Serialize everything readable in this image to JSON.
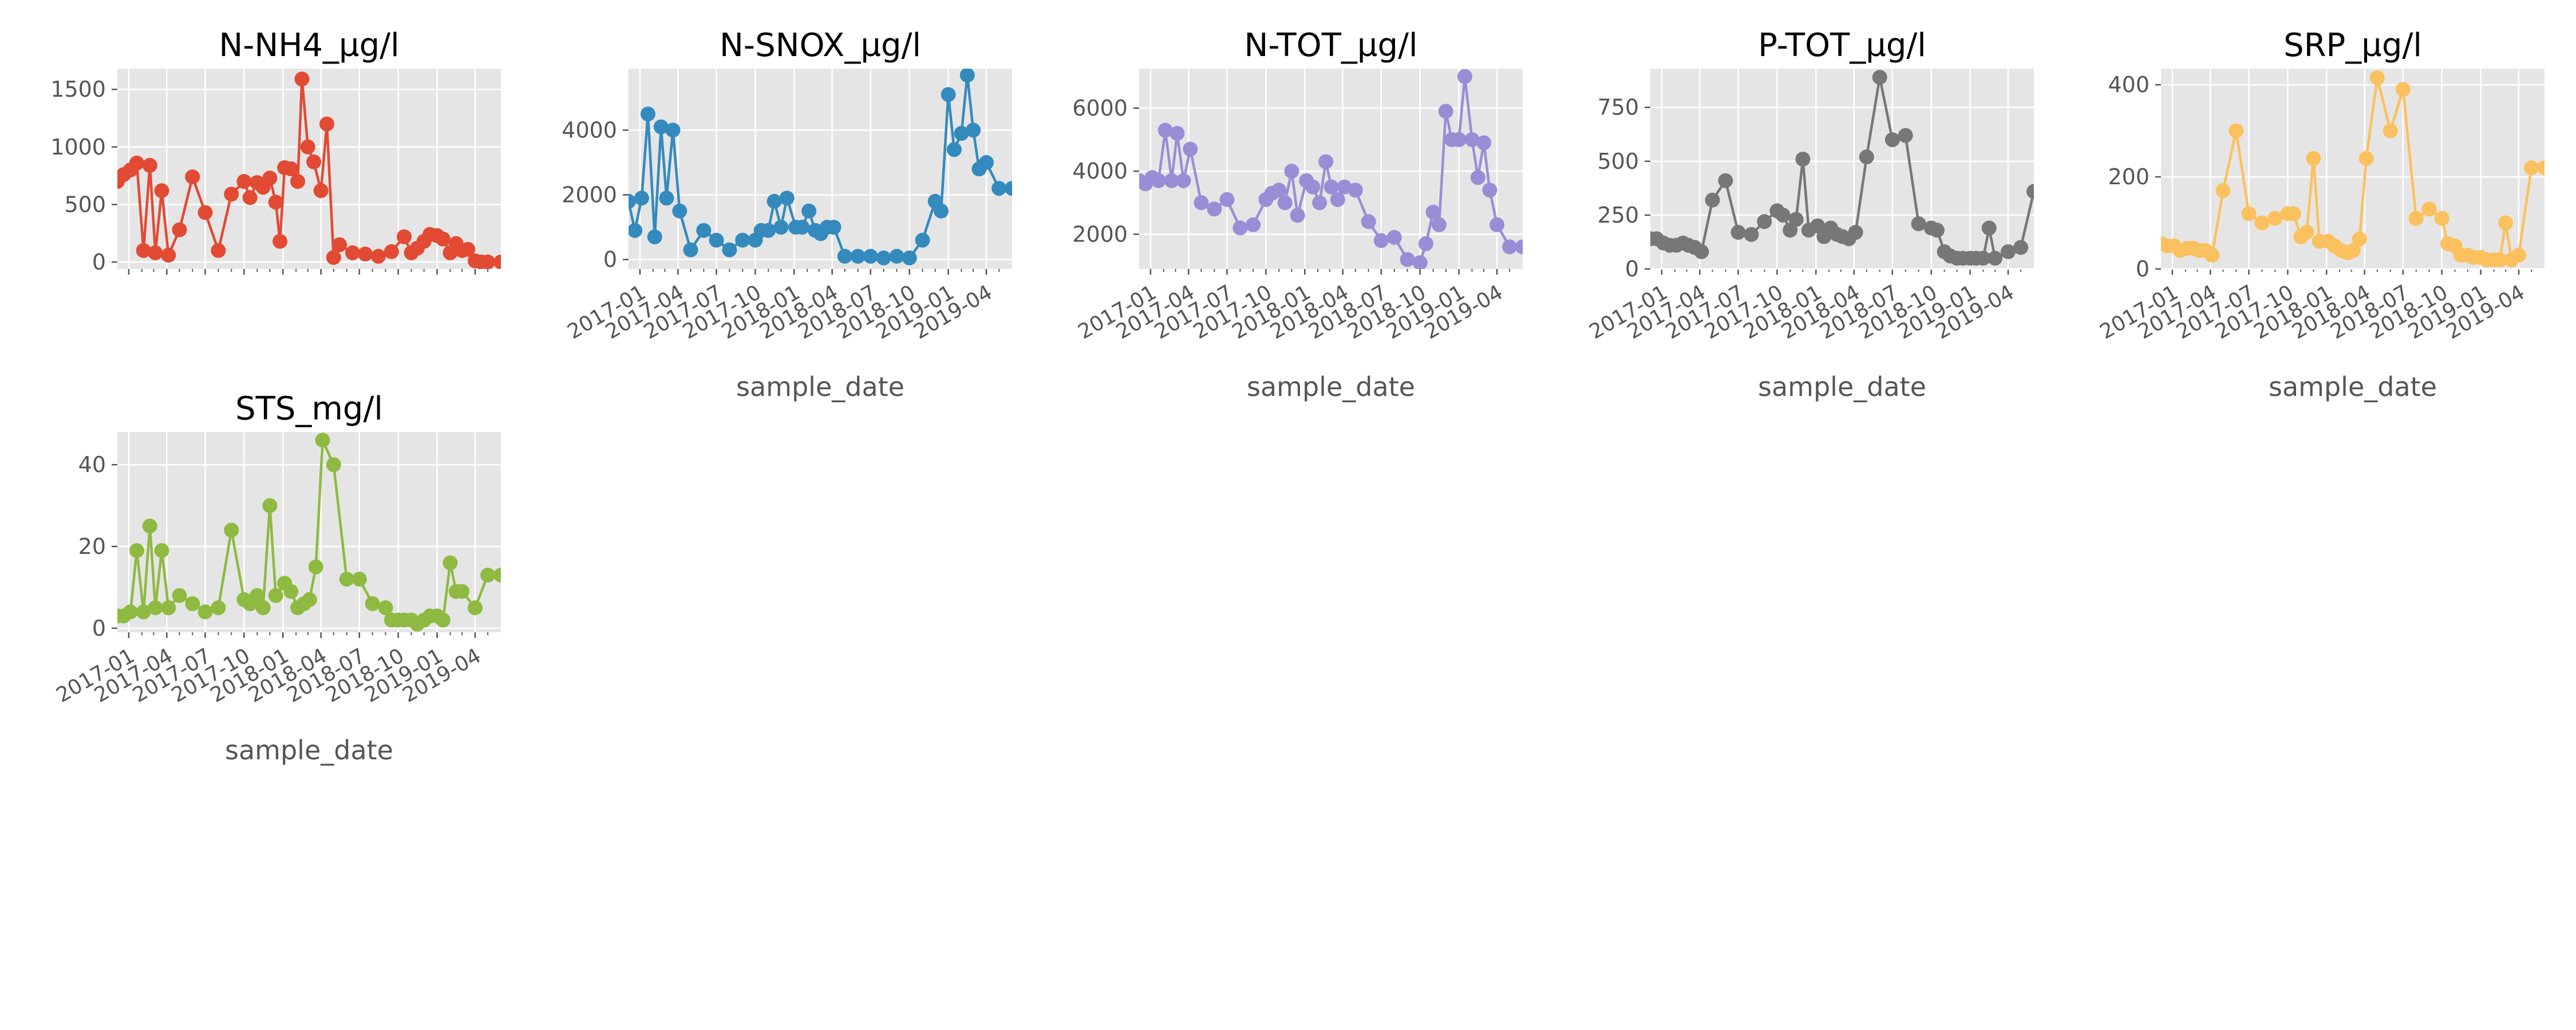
{
  "figure": {
    "background": "#ffffff",
    "panel_background": "#e5e5e5",
    "grid_color": "#ffffff",
    "tick_color": "#555555",
    "title_color": "#000000"
  },
  "chart_data": [
    {
      "type": "line",
      "title": "N-NH4_µg/l",
      "xlabel": "",
      "ylabel": "",
      "color": "#E24A33",
      "x_tick_labels_shown": false,
      "ylim": [
        -60,
        1680
      ],
      "yticks": [
        0,
        500,
        1000,
        1500
      ],
      "ytick_labels": [
        "0",
        "500",
        "1000",
        "1500"
      ],
      "x": [
        "2016-12-05",
        "2016-12-20",
        "2017-01-05",
        "2017-01-20",
        "2017-02-05",
        "2017-02-20",
        "2017-03-05",
        "2017-03-20",
        "2017-04-05",
        "2017-05-01",
        "2017-06-01",
        "2017-07-01",
        "2017-08-01",
        "2017-09-01",
        "2017-10-01",
        "2017-10-15",
        "2017-11-01",
        "2017-11-15",
        "2017-12-01",
        "2017-12-15",
        "2017-12-25",
        "2018-01-05",
        "2018-01-20",
        "2018-02-05",
        "2018-02-15",
        "2018-03-01",
        "2018-03-15",
        "2018-04-01",
        "2018-04-15",
        "2018-05-01",
        "2018-05-15",
        "2018-06-15",
        "2018-07-15",
        "2018-08-15",
        "2018-09-15",
        "2018-10-15",
        "2018-11-01",
        "2018-11-15",
        "2018-12-01",
        "2018-12-15",
        "2019-01-01",
        "2019-01-15",
        "2019-02-01",
        "2019-02-15",
        "2019-03-01",
        "2019-03-15",
        "2019-04-01",
        "2019-04-15",
        "2019-05-01",
        "2019-06-01",
        "2019-07-01"
      ],
      "y": [
        700,
        760,
        800,
        860,
        100,
        840,
        80,
        620,
        60,
        280,
        740,
        430,
        100,
        590,
        700,
        560,
        690,
        650,
        730,
        520,
        180,
        820,
        810,
        700,
        1590,
        1000,
        870,
        620,
        1200,
        40,
        150,
        80,
        70,
        50,
        90,
        220,
        80,
        120,
        180,
        240,
        230,
        200,
        80,
        160,
        100,
        110,
        10,
        0,
        0,
        0,
        0
      ]
    },
    {
      "type": "line",
      "title": "N-SNOX_µg/l",
      "xlabel": "sample_date",
      "ylabel": "",
      "color": "#348ABD",
      "x_tick_labels_shown": true,
      "x_tick_labels": [
        "2017-01",
        "2017-04",
        "2017-07",
        "2017-10",
        "2018-01",
        "2018-04",
        "2018-07",
        "2018-10",
        "2019-01",
        "2019-04"
      ],
      "ylim": [
        -290,
        5900
      ],
      "yticks": [
        0,
        2000,
        4000
      ],
      "ytick_labels": [
        "0",
        "2000",
        "4000"
      ],
      "x": [
        "2016-12-05",
        "2016-12-20",
        "2017-01-05",
        "2017-01-20",
        "2017-02-05",
        "2017-02-20",
        "2017-03-05",
        "2017-03-20",
        "2017-04-05",
        "2017-05-01",
        "2017-06-01",
        "2017-07-01",
        "2017-08-01",
        "2017-09-01",
        "2017-10-01",
        "2017-10-15",
        "2017-11-01",
        "2017-11-15",
        "2017-12-01",
        "2017-12-15",
        "2018-01-05",
        "2018-01-20",
        "2018-02-05",
        "2018-02-20",
        "2018-03-05",
        "2018-03-20",
        "2018-04-05",
        "2018-05-01",
        "2018-06-01",
        "2018-07-01",
        "2018-08-01",
        "2018-09-01",
        "2018-10-01",
        "2018-11-01",
        "2018-12-01",
        "2018-12-15",
        "2019-01-01",
        "2019-01-15",
        "2019-02-01",
        "2019-02-15",
        "2019-03-01",
        "2019-03-15",
        "2019-04-01",
        "2019-05-01",
        "2019-06-01"
      ],
      "y": [
        1800,
        900,
        1900,
        4500,
        700,
        4100,
        1900,
        4000,
        1500,
        300,
        900,
        600,
        300,
        600,
        600,
        900,
        900,
        1800,
        1000,
        1900,
        1000,
        1000,
        1500,
        900,
        800,
        1000,
        1000,
        100,
        100,
        100,
        50,
        100,
        50,
        600,
        1800,
        1500,
        5100,
        3400,
        3900,
        5700,
        4000,
        2800,
        3000,
        2200,
        2200
      ]
    },
    {
      "type": "line",
      "title": "N-TOT_µg/l",
      "xlabel": "sample_date",
      "ylabel": "",
      "color": "#988ED5",
      "x_tick_labels_shown": true,
      "x_tick_labels": [
        "2017-01",
        "2017-04",
        "2017-07",
        "2017-10",
        "2018-01",
        "2018-04",
        "2018-07",
        "2018-10",
        "2019-01",
        "2019-04"
      ],
      "ylim": [
        900,
        7250
      ],
      "yticks": [
        2000,
        4000,
        6000
      ],
      "ytick_labels": [
        "2000",
        "4000",
        "6000"
      ],
      "x": [
        "2016-12-05",
        "2016-12-20",
        "2017-01-05",
        "2017-01-20",
        "2017-02-05",
        "2017-02-20",
        "2017-03-05",
        "2017-03-20",
        "2017-04-05",
        "2017-05-01",
        "2017-06-01",
        "2017-07-01",
        "2017-08-01",
        "2017-09-01",
        "2017-10-01",
        "2017-10-15",
        "2017-11-01",
        "2017-11-15",
        "2017-12-01",
        "2017-12-15",
        "2018-01-05",
        "2018-01-20",
        "2018-02-05",
        "2018-02-20",
        "2018-03-05",
        "2018-03-20",
        "2018-04-05",
        "2018-05-01",
        "2018-06-01",
        "2018-07-01",
        "2018-08-01",
        "2018-09-01",
        "2018-10-01",
        "2018-10-15",
        "2018-11-01",
        "2018-11-15",
        "2018-12-01",
        "2018-12-15",
        "2019-01-01",
        "2019-01-15",
        "2019-02-01",
        "2019-02-15",
        "2019-03-01",
        "2019-03-15",
        "2019-04-01",
        "2019-05-01",
        "2019-06-01"
      ],
      "y": [
        3700,
        3600,
        3800,
        3700,
        5300,
        3700,
        5200,
        3700,
        4700,
        3000,
        2800,
        3100,
        2200,
        2300,
        3100,
        3300,
        3400,
        3000,
        4000,
        2600,
        3700,
        3500,
        3000,
        4300,
        3500,
        3100,
        3500,
        3400,
        2400,
        1800,
        1900,
        1200,
        1100,
        1700,
        2700,
        2300,
        5900,
        5000,
        5000,
        7000,
        5000,
        3800,
        4900,
        3400,
        2300,
        1600,
        1600
      ]
    },
    {
      "type": "line",
      "title": "P-TOT_µg/l",
      "xlabel": "sample_date",
      "ylabel": "",
      "color": "#777777",
      "x_tick_labels_shown": true,
      "x_tick_labels": [
        "2017-01",
        "2017-04",
        "2017-07",
        "2017-10",
        "2018-01",
        "2018-04",
        "2018-07",
        "2018-10",
        "2019-01",
        "2019-04"
      ],
      "ylim": [
        0,
        930
      ],
      "yticks": [
        0,
        250,
        500,
        750
      ],
      "ytick_labels": [
        "0",
        "250",
        "500",
        "750"
      ],
      "x": [
        "2016-12-05",
        "2016-12-20",
        "2017-01-05",
        "2017-01-20",
        "2017-02-05",
        "2017-02-20",
        "2017-03-05",
        "2017-03-20",
        "2017-04-05",
        "2017-05-01",
        "2017-06-01",
        "2017-07-01",
        "2017-08-01",
        "2017-09-01",
        "2017-10-01",
        "2017-10-15",
        "2017-11-01",
        "2017-11-15",
        "2017-12-01",
        "2017-12-15",
        "2018-01-05",
        "2018-01-20",
        "2018-02-05",
        "2018-02-20",
        "2018-03-05",
        "2018-03-20",
        "2018-04-05",
        "2018-05-01",
        "2018-06-01",
        "2018-07-01",
        "2018-08-01",
        "2018-09-01",
        "2018-10-01",
        "2018-10-15",
        "2018-11-01",
        "2018-11-15",
        "2018-12-01",
        "2018-12-15",
        "2019-01-01",
        "2019-01-15",
        "2019-02-01",
        "2019-02-15",
        "2019-03-01",
        "2019-04-01",
        "2019-05-01",
        "2019-06-01"
      ],
      "y": [
        140,
        140,
        120,
        110,
        110,
        120,
        110,
        100,
        80,
        320,
        410,
        170,
        160,
        220,
        270,
        250,
        180,
        230,
        510,
        180,
        200,
        150,
        190,
        160,
        150,
        140,
        170,
        520,
        890,
        600,
        620,
        210,
        190,
        180,
        80,
        60,
        50,
        50,
        50,
        50,
        50,
        190,
        50,
        80,
        100,
        360
      ]
    },
    {
      "type": "line",
      "title": "SRP_µg/l",
      "xlabel": "sample_date",
      "ylabel": "",
      "color": "#FBC15E",
      "x_tick_labels_shown": true,
      "x_tick_labels": [
        "2017-01",
        "2017-04",
        "2017-07",
        "2017-10",
        "2018-01",
        "2018-04",
        "2018-07",
        "2018-10",
        "2019-01",
        "2019-04"
      ],
      "ylim": [
        0,
        435
      ],
      "yticks": [
        0,
        200,
        400
      ],
      "ytick_labels": [
        "0",
        "200",
        "400"
      ],
      "x": [
        "2016-12-05",
        "2016-12-20",
        "2017-01-05",
        "2017-01-20",
        "2017-02-05",
        "2017-02-20",
        "2017-03-05",
        "2017-03-20",
        "2017-04-05",
        "2017-05-01",
        "2017-06-01",
        "2017-07-01",
        "2017-08-01",
        "2017-09-01",
        "2017-10-01",
        "2017-10-15",
        "2017-11-01",
        "2017-11-15",
        "2017-12-01",
        "2017-12-15",
        "2018-01-05",
        "2018-01-20",
        "2018-02-05",
        "2018-02-20",
        "2018-03-05",
        "2018-03-20",
        "2018-04-05",
        "2018-05-01",
        "2018-06-01",
        "2018-07-01",
        "2018-08-01",
        "2018-09-01",
        "2018-10-01",
        "2018-10-15",
        "2018-11-01",
        "2018-11-15",
        "2018-12-01",
        "2018-12-15",
        "2019-01-01",
        "2019-01-15",
        "2019-02-01",
        "2019-02-15",
        "2019-03-01",
        "2019-03-15",
        "2019-04-01",
        "2019-05-01",
        "2019-06-01"
      ],
      "y": [
        55,
        50,
        50,
        40,
        45,
        45,
        40,
        40,
        30,
        170,
        300,
        120,
        100,
        110,
        120,
        120,
        70,
        80,
        240,
        60,
        60,
        50,
        40,
        35,
        40,
        65,
        240,
        415,
        300,
        390,
        110,
        130,
        110,
        55,
        50,
        30,
        30,
        25,
        25,
        20,
        20,
        20,
        100,
        20,
        30,
        220,
        220
      ]
    },
    {
      "type": "line",
      "title": "STS_mg/l",
      "xlabel": "sample_date",
      "ylabel": "",
      "color": "#8EBA42",
      "x_tick_labels_shown": true,
      "x_tick_labels": [
        "2017-01",
        "2017-04",
        "2017-07",
        "2017-10",
        "2018-01",
        "2018-04",
        "2018-07",
        "2018-10",
        "2019-01",
        "2019-04"
      ],
      "ylim": [
        -1,
        48
      ],
      "yticks": [
        0,
        20,
        40
      ],
      "ytick_labels": [
        "0",
        "20",
        "40"
      ],
      "x": [
        "2016-12-05",
        "2016-12-20",
        "2017-01-05",
        "2017-01-20",
        "2017-02-05",
        "2017-02-20",
        "2017-03-05",
        "2017-03-20",
        "2017-04-05",
        "2017-05-01",
        "2017-06-01",
        "2017-07-01",
        "2017-08-01",
        "2017-09-01",
        "2017-10-01",
        "2017-10-15",
        "2017-11-01",
        "2017-11-15",
        "2017-12-01",
        "2017-12-15",
        "2018-01-05",
        "2018-01-20",
        "2018-02-05",
        "2018-02-20",
        "2018-03-05",
        "2018-03-20",
        "2018-04-05",
        "2018-05-01",
        "2018-06-01",
        "2018-07-01",
        "2018-08-01",
        "2018-09-01",
        "2018-09-15",
        "2018-10-01",
        "2018-10-15",
        "2018-11-01",
        "2018-11-15",
        "2018-12-01",
        "2018-12-15",
        "2019-01-01",
        "2019-01-15",
        "2019-02-01",
        "2019-02-15",
        "2019-03-01",
        "2019-04-01",
        "2019-05-01",
        "2019-06-01"
      ],
      "y": [
        3,
        3,
        4,
        19,
        4,
        25,
        5,
        19,
        5,
        8,
        6,
        4,
        5,
        24,
        7,
        6,
        8,
        5,
        30,
        8,
        11,
        9,
        5,
        6,
        7,
        15,
        46,
        40,
        12,
        12,
        6,
        5,
        2,
        2,
        2,
        2,
        1,
        2,
        3,
        3,
        2,
        16,
        9,
        9,
        5,
        13,
        13
      ]
    }
  ]
}
